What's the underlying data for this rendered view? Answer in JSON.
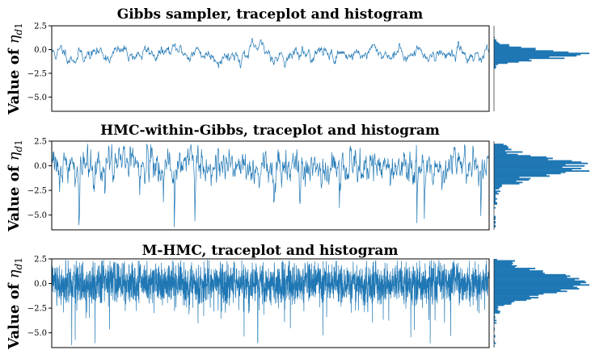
{
  "chart_data": [
    {
      "type": "line",
      "title": "Gibbs sampler, traceplot and histogram",
      "ylabel": "Value of η_d1",
      "xlabel": "",
      "ylim": [
        -6.5,
        2.5
      ],
      "yticks": [
        2.5,
        0.0,
        -2.5,
        -5.0
      ],
      "ytick_labels": [
        "2.5",
        "0.0",
        "−2.5",
        "−5.0"
      ],
      "series": [
        {
          "name": "",
          "n_samples": 1000,
          "mean": -0.4,
          "std": 0.55,
          "min": -2.6,
          "max": 1.6,
          "color": "#1f77b4"
        }
      ],
      "histogram": {
        "orientation": "horizontal",
        "peak_value": -0.5,
        "range": [
          -2.6,
          1.6
        ]
      }
    },
    {
      "type": "line",
      "title": "HMC-within-Gibbs, traceplot and histogram",
      "ylabel": "Value of η_d1",
      "xlabel": "",
      "ylim": [
        -6.5,
        2.5
      ],
      "yticks": [
        2.5,
        0.0,
        -2.5,
        -5.0
      ],
      "ytick_labels": [
        "2.5",
        "0.0",
        "−2.5",
        "−5.0"
      ],
      "series": [
        {
          "name": "",
          "n_samples": 1000,
          "mean": 0.0,
          "std": 0.9,
          "min": -6.5,
          "max": 2.3,
          "color": "#1f77b4"
        }
      ],
      "histogram": {
        "orientation": "horizontal",
        "peak_value": 0.3,
        "range": [
          -6.5,
          2.3
        ]
      }
    },
    {
      "type": "line",
      "title": "M-HMC, traceplot and histogram",
      "ylabel": "Value of η_d1",
      "xlabel": "",
      "ylim": [
        -6.5,
        2.5
      ],
      "yticks": [
        2.5,
        0.0,
        -2.5,
        -5.0
      ],
      "ytick_labels": [
        "2.5",
        "0.0",
        "−2.5",
        "−5.0"
      ],
      "series": [
        {
          "name": "",
          "n_samples": 3000,
          "mean": 0.0,
          "std": 1.05,
          "min": -6.3,
          "max": 2.4,
          "color": "#1f77b4"
        }
      ],
      "histogram": {
        "orientation": "horizontal",
        "peak_value": 0.4,
        "range": [
          -6.3,
          2.4
        ]
      }
    }
  ]
}
